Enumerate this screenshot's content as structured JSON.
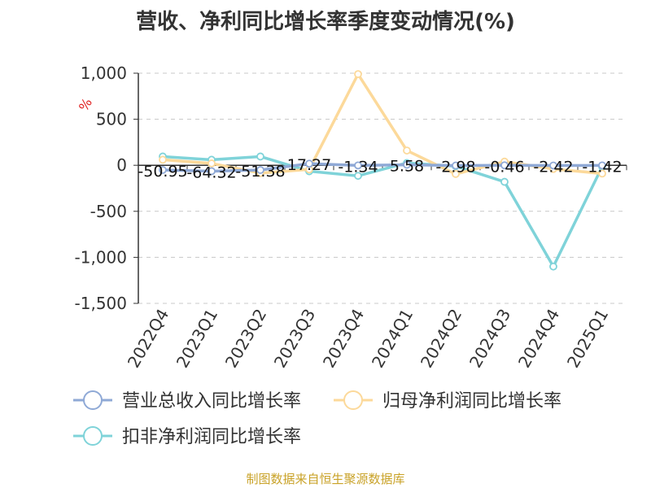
{
  "title": "营收、净利同比增长率季度变动情况(%)",
  "source_note": "制图数据来自恒生聚源数据库",
  "chart_data": {
    "type": "line",
    "title": "营收、净利同比增长率季度变动情况(%)",
    "y_unit": "%",
    "categories": [
      "2022Q4",
      "2023Q1",
      "2023Q2",
      "2023Q3",
      "2023Q4",
      "2024Q1",
      "2024Q2",
      "2024Q3",
      "2024Q4",
      "2025Q1"
    ],
    "ylim": [
      -1500,
      1000
    ],
    "yticks": [
      1000,
      500,
      0,
      -500,
      -1000,
      -1500
    ],
    "ytick_labels": [
      "1,000",
      "500",
      "0",
      "-500",
      "-1,000",
      "-1,500"
    ],
    "grid": true,
    "legend_position": "bottom",
    "series": [
      {
        "name": "营业总收入同比增长率",
        "color": "#8fa9d6",
        "values": [
          -50.95,
          -64.32,
          -51.38,
          17.27,
          -1.34,
          5.58,
          -2.98,
          -0.46,
          -2.42,
          -1.42
        ],
        "labels": [
          "-50.95",
          "-64.32",
          "-51.38",
          "17.27",
          "-1.34",
          "5.58",
          "-2.98",
          "-0.46",
          "-2.42",
          "-1.42"
        ]
      },
      {
        "name": "归母净利润同比增长率",
        "color": "#fcd99a",
        "values": [
          60,
          20,
          -85,
          -45,
          990,
          160,
          -95,
          40,
          -40,
          -90
        ]
      },
      {
        "name": "扣非净利润同比增长率",
        "color": "#7fd3d9",
        "values": [
          95,
          60,
          95,
          -65,
          -115,
          25,
          -10,
          -180,
          -1100,
          -15
        ]
      }
    ]
  }
}
